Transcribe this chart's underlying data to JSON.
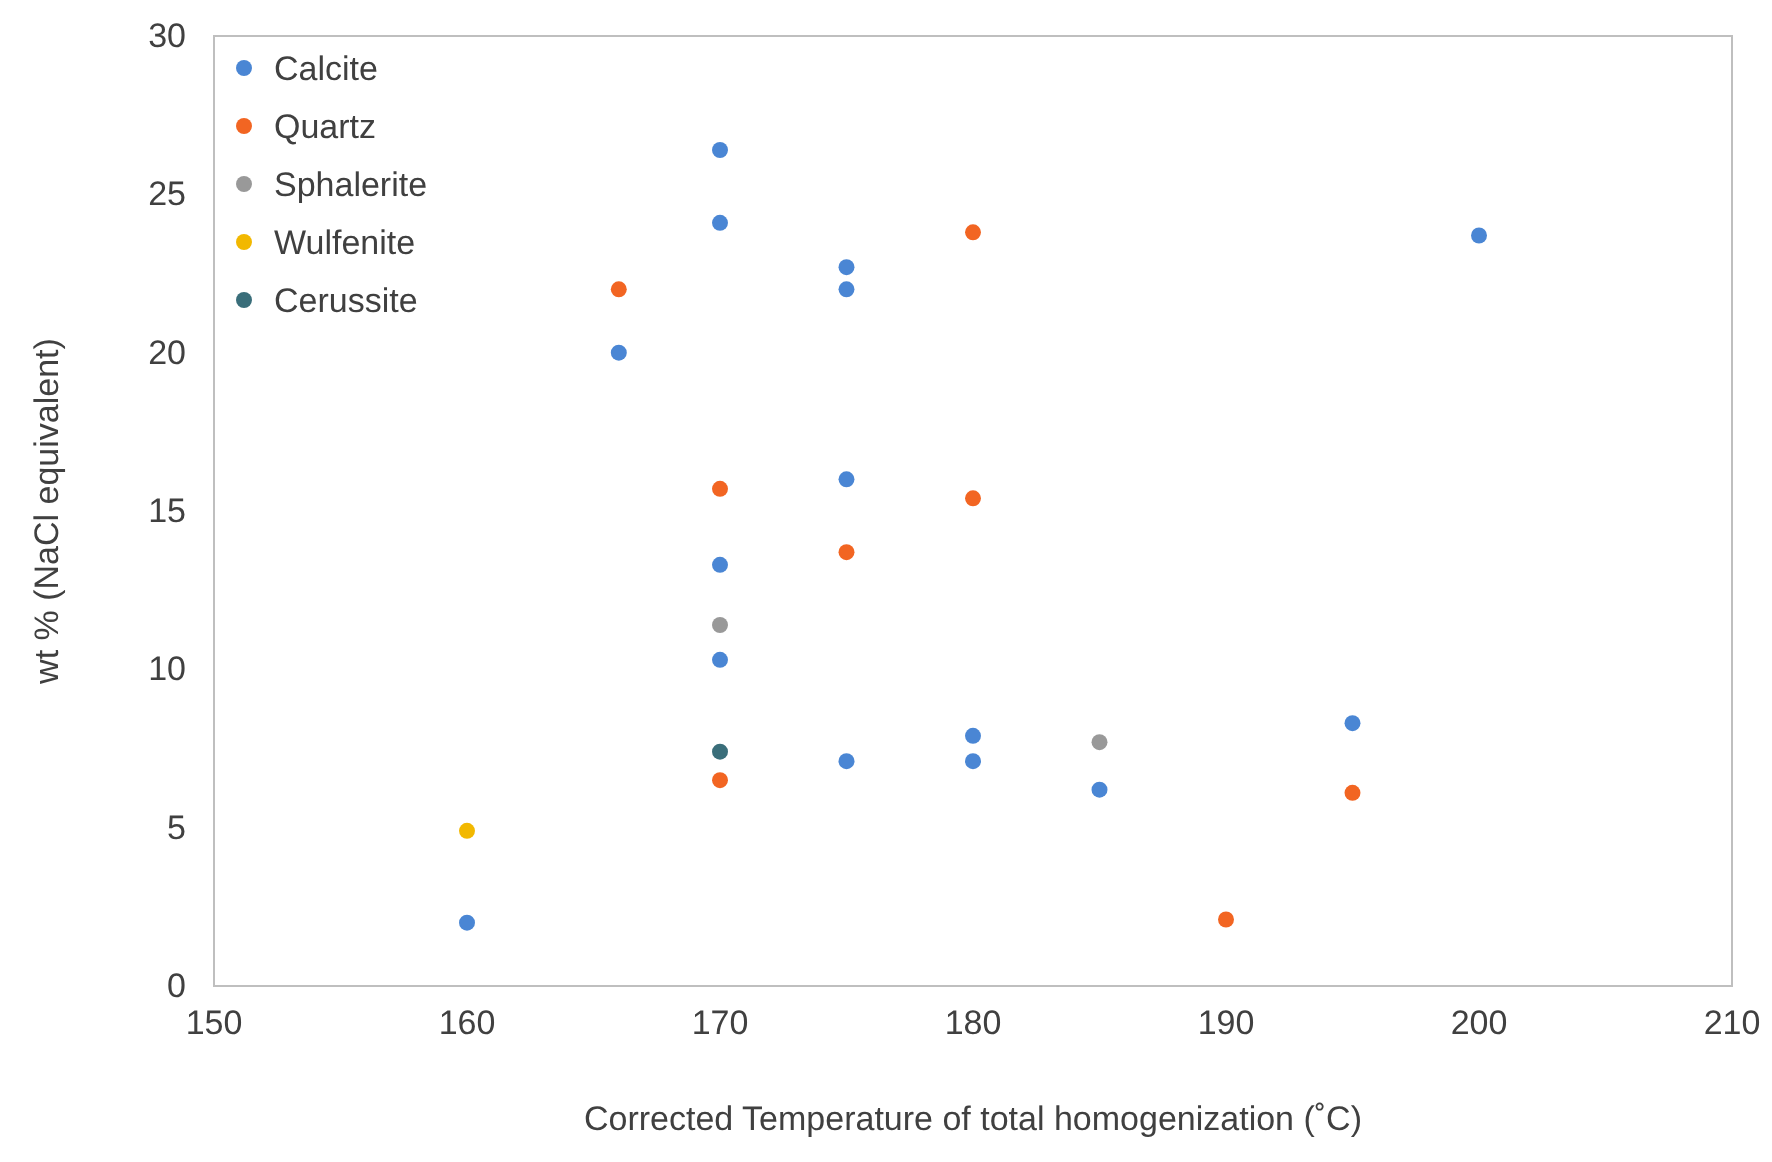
{
  "chart_data": {
    "type": "scatter",
    "xlabel": "Corrected Temperature of total homogenization (˚C)",
    "ylabel": "wt % (NaCl equivalent)",
    "xlim": [
      150,
      210
    ],
    "xticks": [
      150,
      160,
      170,
      180,
      190,
      200,
      210
    ],
    "ylim": [
      0,
      30
    ],
    "yticks": [
      0,
      5,
      10,
      15,
      20,
      25,
      30
    ],
    "grid": false,
    "legend": "top left",
    "marker": "circle",
    "series": [
      {
        "name": "Calcite",
        "color": "#4a86d4",
        "x": [
          160,
          166,
          170,
          170,
          170,
          170,
          175,
          175,
          175,
          175,
          180,
          180,
          185,
          195,
          200
        ],
        "values": [
          2.0,
          20.0,
          26.4,
          24.1,
          13.3,
          10.3,
          22.7,
          22.0,
          16.0,
          7.1,
          7.9,
          7.1,
          6.2,
          8.3,
          23.7
        ]
      },
      {
        "name": "Quartz",
        "color": "#f26522",
        "x": [
          166,
          170,
          170,
          175,
          180,
          180,
          190,
          195
        ],
        "values": [
          22.0,
          15.7,
          6.5,
          13.7,
          23.8,
          15.4,
          2.1,
          6.1
        ]
      },
      {
        "name": "Sphalerite",
        "color": "#999999",
        "x": [
          170,
          185
        ],
        "values": [
          11.4,
          7.7
        ]
      },
      {
        "name": "Wulfenite",
        "color": "#f2b800",
        "x": [
          160
        ],
        "values": [
          4.9
        ]
      },
      {
        "name": "Cerussite",
        "color": "#3a6e7a",
        "x": [
          170
        ],
        "values": [
          7.4
        ]
      }
    ]
  }
}
